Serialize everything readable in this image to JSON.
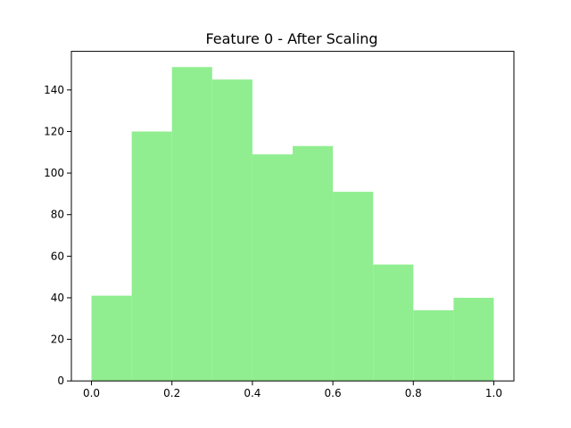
{
  "chart_data": {
    "type": "bar",
    "title": "Feature 0 - After Scaling",
    "xlabel": "",
    "ylabel": "",
    "bins": [
      {
        "start": 0.0,
        "end": 0.1,
        "value": 41
      },
      {
        "start": 0.1,
        "end": 0.2,
        "value": 120
      },
      {
        "start": 0.2,
        "end": 0.3,
        "value": 151
      },
      {
        "start": 0.3,
        "end": 0.4,
        "value": 145
      },
      {
        "start": 0.4,
        "end": 0.5,
        "value": 109
      },
      {
        "start": 0.5,
        "end": 0.6,
        "value": 113
      },
      {
        "start": 0.6,
        "end": 0.7,
        "value": 91
      },
      {
        "start": 0.7,
        "end": 0.8,
        "value": 56
      },
      {
        "start": 0.8,
        "end": 0.9,
        "value": 34
      },
      {
        "start": 0.9,
        "end": 1.0,
        "value": 40
      }
    ],
    "xlim": [
      -0.05,
      1.05
    ],
    "ylim": [
      0,
      158.55
    ],
    "xticks": [
      {
        "value": 0.0,
        "label": "0.0"
      },
      {
        "value": 0.2,
        "label": "0.2"
      },
      {
        "value": 0.4,
        "label": "0.4"
      },
      {
        "value": 0.6,
        "label": "0.6"
      },
      {
        "value": 0.8,
        "label": "0.8"
      },
      {
        "value": 1.0,
        "label": "1.0"
      }
    ],
    "yticks": [
      {
        "value": 0,
        "label": "0"
      },
      {
        "value": 20,
        "label": "20"
      },
      {
        "value": 40,
        "label": "40"
      },
      {
        "value": 60,
        "label": "60"
      },
      {
        "value": 80,
        "label": "80"
      },
      {
        "value": 100,
        "label": "100"
      },
      {
        "value": 120,
        "label": "120"
      },
      {
        "value": 140,
        "label": "140"
      }
    ],
    "grid": false,
    "colors": {
      "bar": "#90ee90",
      "axis": "#000000"
    }
  }
}
